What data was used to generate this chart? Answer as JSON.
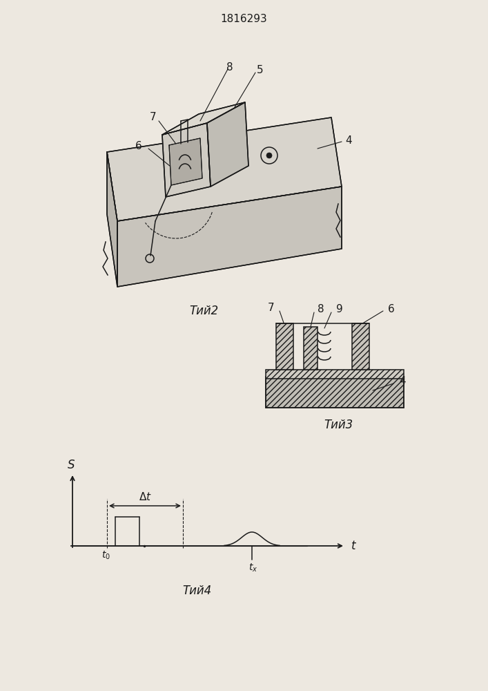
{
  "title": "1816293",
  "bg_color": "#ede8e0",
  "line_color": "#1a1a1a",
  "fig2_caption": "Τий2",
  "fig3_caption": "Τий3",
  "fig4_caption": "Τий4"
}
